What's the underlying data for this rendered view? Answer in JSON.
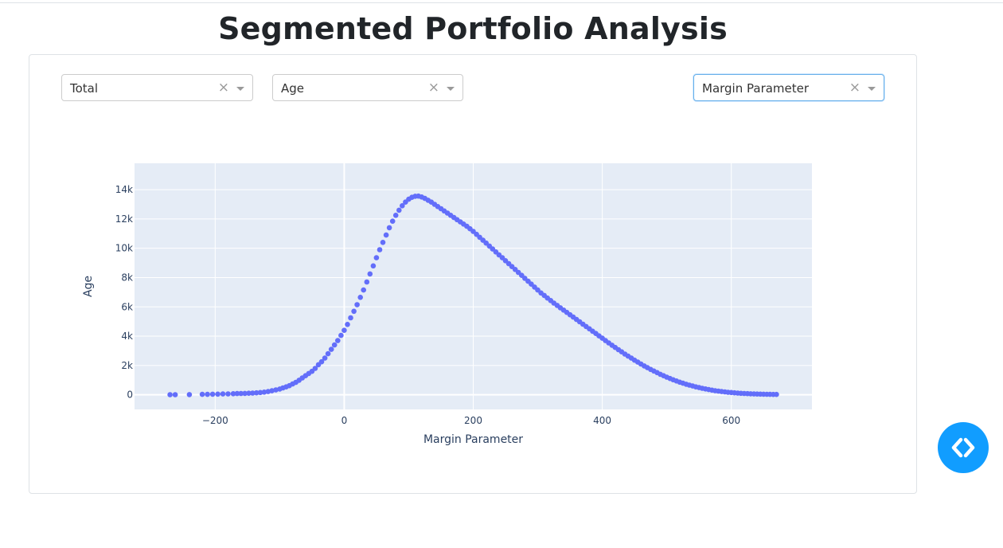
{
  "page": {
    "title": "Segmented Portfolio Analysis"
  },
  "controls": {
    "segment_dropdown": {
      "value": "Total",
      "clear": "×"
    },
    "y_dropdown": {
      "value": "Age",
      "clear": "×"
    },
    "x_dropdown": {
      "value": "Margin Parameter",
      "clear": "×"
    }
  },
  "fab": {
    "icon": "code-icon"
  },
  "colors": {
    "marker": "#636efa",
    "plot_bg": "#e5ecf6",
    "grid": "#ffffff",
    "fab": "#119dff",
    "title": "#212529"
  },
  "chart_data": {
    "type": "scatter",
    "xlabel": "Margin Parameter",
    "ylabel": "Age",
    "xlim": [
      -325,
      725
    ],
    "ylim": [
      -1000,
      15800
    ],
    "xticks": [
      -200,
      0,
      200,
      400,
      600
    ],
    "xtick_labels": [
      "−200",
      "0",
      "200",
      "400",
      "600"
    ],
    "yticks": [
      0,
      2000,
      4000,
      6000,
      8000,
      10000,
      12000,
      14000
    ],
    "ytick_labels": [
      "0",
      "2k",
      "4k",
      "6k",
      "8k",
      "10k",
      "12k",
      "14k"
    ],
    "grid": true,
    "marker_color": "#636efa",
    "points": [
      [
        -270,
        5
      ],
      [
        -262,
        8
      ],
      [
        -240,
        12
      ],
      [
        -220,
        25
      ],
      [
        -212,
        30
      ],
      [
        -204,
        38
      ],
      [
        -196,
        45
      ],
      [
        -188,
        55
      ],
      [
        -180,
        62
      ],
      [
        -172,
        72
      ],
      [
        -166,
        80
      ],
      [
        -160,
        88
      ],
      [
        -154,
        95
      ],
      [
        -148,
        105
      ],
      [
        -142,
        115
      ],
      [
        -136,
        130
      ],
      [
        -130,
        150
      ],
      [
        -124,
        180
      ],
      [
        -118,
        220
      ],
      [
        -112,
        270
      ],
      [
        -106,
        330
      ],
      [
        -100,
        390
      ],
      [
        -95,
        470
      ],
      [
        -90,
        540
      ],
      [
        -85,
        620
      ],
      [
        -80,
        740
      ],
      [
        -75,
        850
      ],
      [
        -70,
        990
      ],
      [
        -65,
        1150
      ],
      [
        -60,
        1300
      ],
      [
        -55,
        1450
      ],
      [
        -50,
        1600
      ],
      [
        -45,
        1800
      ],
      [
        -40,
        2050
      ],
      [
        -35,
        2250
      ],
      [
        -30,
        2500
      ],
      [
        -25,
        2800
      ],
      [
        -20,
        3100
      ],
      [
        -15,
        3400
      ],
      [
        -10,
        3700
      ],
      [
        -5,
        4050
      ],
      [
        0,
        4400
      ],
      [
        5,
        4800
      ],
      [
        10,
        5250
      ],
      [
        15,
        5700
      ],
      [
        20,
        6150
      ],
      [
        25,
        6650
      ],
      [
        30,
        7150
      ],
      [
        35,
        7700
      ],
      [
        40,
        8250
      ],
      [
        45,
        8800
      ],
      [
        50,
        9350
      ],
      [
        55,
        9900
      ],
      [
        60,
        10400
      ],
      [
        65,
        10900
      ],
      [
        70,
        11400
      ],
      [
        75,
        11850
      ],
      [
        80,
        12250
      ],
      [
        85,
        12600
      ],
      [
        90,
        12900
      ],
      [
        95,
        13150
      ],
      [
        100,
        13350
      ],
      [
        105,
        13480
      ],
      [
        110,
        13550
      ],
      [
        115,
        13560
      ],
      [
        120,
        13500
      ],
      [
        125,
        13400
      ],
      [
        130,
        13280
      ],
      [
        135,
        13150
      ],
      [
        140,
        13000
      ],
      [
        145,
        12850
      ],
      [
        150,
        12700
      ],
      [
        155,
        12550
      ],
      [
        160,
        12400
      ],
      [
        165,
        12250
      ],
      [
        170,
        12100
      ],
      [
        175,
        11950
      ],
      [
        180,
        11800
      ],
      [
        185,
        11650
      ],
      [
        190,
        11500
      ],
      [
        195,
        11330
      ],
      [
        200,
        11150
      ],
      [
        205,
        10950
      ],
      [
        210,
        10750
      ],
      [
        215,
        10550
      ],
      [
        220,
        10350
      ],
      [
        225,
        10150
      ],
      [
        230,
        9950
      ],
      [
        235,
        9750
      ],
      [
        240,
        9550
      ],
      [
        245,
        9350
      ],
      [
        250,
        9150
      ],
      [
        255,
        8950
      ],
      [
        260,
        8750
      ],
      [
        265,
        8550
      ],
      [
        270,
        8350
      ],
      [
        275,
        8150
      ],
      [
        280,
        7950
      ],
      [
        285,
        7750
      ],
      [
        290,
        7550
      ],
      [
        295,
        7350
      ],
      [
        300,
        7150
      ],
      [
        305,
        6950
      ],
      [
        310,
        6780
      ],
      [
        315,
        6600
      ],
      [
        320,
        6430
      ],
      [
        325,
        6260
      ],
      [
        330,
        6100
      ],
      [
        335,
        5940
      ],
      [
        340,
        5780
      ],
      [
        345,
        5620
      ],
      [
        350,
        5460
      ],
      [
        355,
        5300
      ],
      [
        360,
        5140
      ],
      [
        365,
        4980
      ],
      [
        370,
        4820
      ],
      [
        375,
        4660
      ],
      [
        380,
        4500
      ],
      [
        385,
        4340
      ],
      [
        390,
        4180
      ],
      [
        395,
        4020
      ],
      [
        400,
        3860
      ],
      [
        405,
        3700
      ],
      [
        410,
        3540
      ],
      [
        415,
        3380
      ],
      [
        420,
        3230
      ],
      [
        425,
        3080
      ],
      [
        430,
        2930
      ],
      [
        435,
        2780
      ],
      [
        440,
        2640
      ],
      [
        445,
        2500
      ],
      [
        450,
        2360
      ],
      [
        455,
        2230
      ],
      [
        460,
        2100
      ],
      [
        465,
        1970
      ],
      [
        470,
        1850
      ],
      [
        475,
        1730
      ],
      [
        480,
        1620
      ],
      [
        485,
        1510
      ],
      [
        490,
        1400
      ],
      [
        495,
        1300
      ],
      [
        500,
        1200
      ],
      [
        505,
        1110
      ],
      [
        510,
        1020
      ],
      [
        515,
        940
      ],
      [
        520,
        860
      ],
      [
        525,
        790
      ],
      [
        530,
        720
      ],
      [
        535,
        660
      ],
      [
        540,
        600
      ],
      [
        545,
        540
      ],
      [
        550,
        490
      ],
      [
        555,
        440
      ],
      [
        560,
        395
      ],
      [
        565,
        355
      ],
      [
        570,
        315
      ],
      [
        575,
        280
      ],
      [
        580,
        250
      ],
      [
        585,
        220
      ],
      [
        590,
        195
      ],
      [
        595,
        170
      ],
      [
        600,
        150
      ],
      [
        605,
        130
      ],
      [
        610,
        115
      ],
      [
        615,
        100
      ],
      [
        620,
        88
      ],
      [
        625,
        76
      ],
      [
        630,
        66
      ],
      [
        635,
        57
      ],
      [
        640,
        50
      ],
      [
        645,
        43
      ],
      [
        650,
        37
      ],
      [
        655,
        32
      ],
      [
        660,
        28
      ],
      [
        665,
        24
      ],
      [
        670,
        20
      ]
    ]
  }
}
